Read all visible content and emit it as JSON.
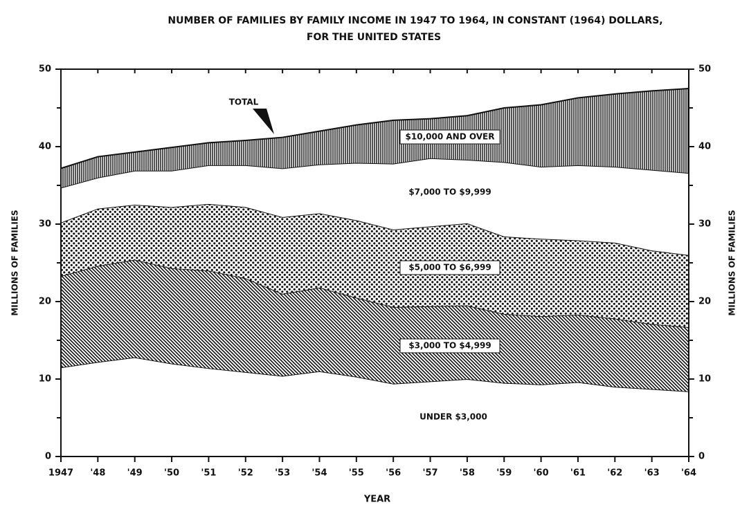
{
  "chart_data": {
    "type": "stacked_area",
    "title": [
      "NUMBER OF FAMILIES BY FAMILY INCOME IN 1947 TO 1964, IN CONSTANT (1964) DOLLARS,",
      "FOR THE UNITED STATES"
    ],
    "xlabel": "YEAR",
    "ylabel": "MILLIONS OF FAMILIES",
    "y2label": "MILLIONS OF FAMILIES",
    "annotation": "TOTAL",
    "categories": [
      "1947",
      "'48",
      "'49",
      "'50",
      "'51",
      "'52",
      "'53",
      "'54",
      "'55",
      "'56",
      "'57",
      "'58",
      "'59",
      "'60",
      "'61",
      "'62",
      "'63",
      "'64"
    ],
    "series": [
      {
        "name": "UNDER $3,000",
        "color": "#111111",
        "values": [
          11.5,
          12.2,
          12.8,
          12.0,
          11.4,
          10.9,
          10.4,
          11.0,
          10.3,
          9.4,
          9.7,
          10.0,
          9.5,
          9.3,
          9.6,
          9.0,
          8.7,
          8.4
        ]
      },
      {
        "name": "$3,000 TO $4,999",
        "color": "#111111",
        "values": [
          11.8,
          12.4,
          12.6,
          12.3,
          12.6,
          12.1,
          10.6,
          10.8,
          10.2,
          9.9,
          9.7,
          9.5,
          8.9,
          8.8,
          8.7,
          8.8,
          8.4,
          8.3
        ]
      },
      {
        "name": "$5,000 TO $6,999",
        "color": "#111111",
        "values": [
          6.9,
          7.4,
          7.1,
          7.9,
          8.6,
          9.2,
          9.9,
          9.6,
          10.0,
          10.0,
          10.3,
          10.6,
          10.0,
          10.0,
          9.6,
          9.8,
          9.5,
          9.3
        ]
      },
      {
        "name": "$7,000 TO $9,999",
        "color": "#111111",
        "values": [
          4.5,
          4.0,
          4.4,
          4.7,
          5.0,
          5.4,
          6.3,
          6.3,
          7.4,
          8.5,
          8.8,
          8.2,
          9.6,
          9.3,
          9.7,
          9.8,
          10.4,
          10.6
        ]
      },
      {
        "name": "$10,000 AND OVER",
        "color": "#111111",
        "values": [
          2.5,
          2.7,
          2.4,
          3.0,
          2.9,
          3.2,
          4.0,
          4.3,
          4.9,
          5.6,
          5.1,
          5.7,
          7.0,
          8.0,
          8.7,
          9.4,
          10.2,
          10.9
        ]
      }
    ],
    "ylim": [
      0,
      50
    ],
    "yticks": [
      0,
      10,
      20,
      30,
      40,
      50
    ],
    "yminorticks": [
      5,
      15,
      25,
      35,
      45
    ],
    "y2lim": [
      0,
      50
    ],
    "y2ticks": [
      0,
      10,
      20,
      30,
      40,
      50
    ]
  }
}
